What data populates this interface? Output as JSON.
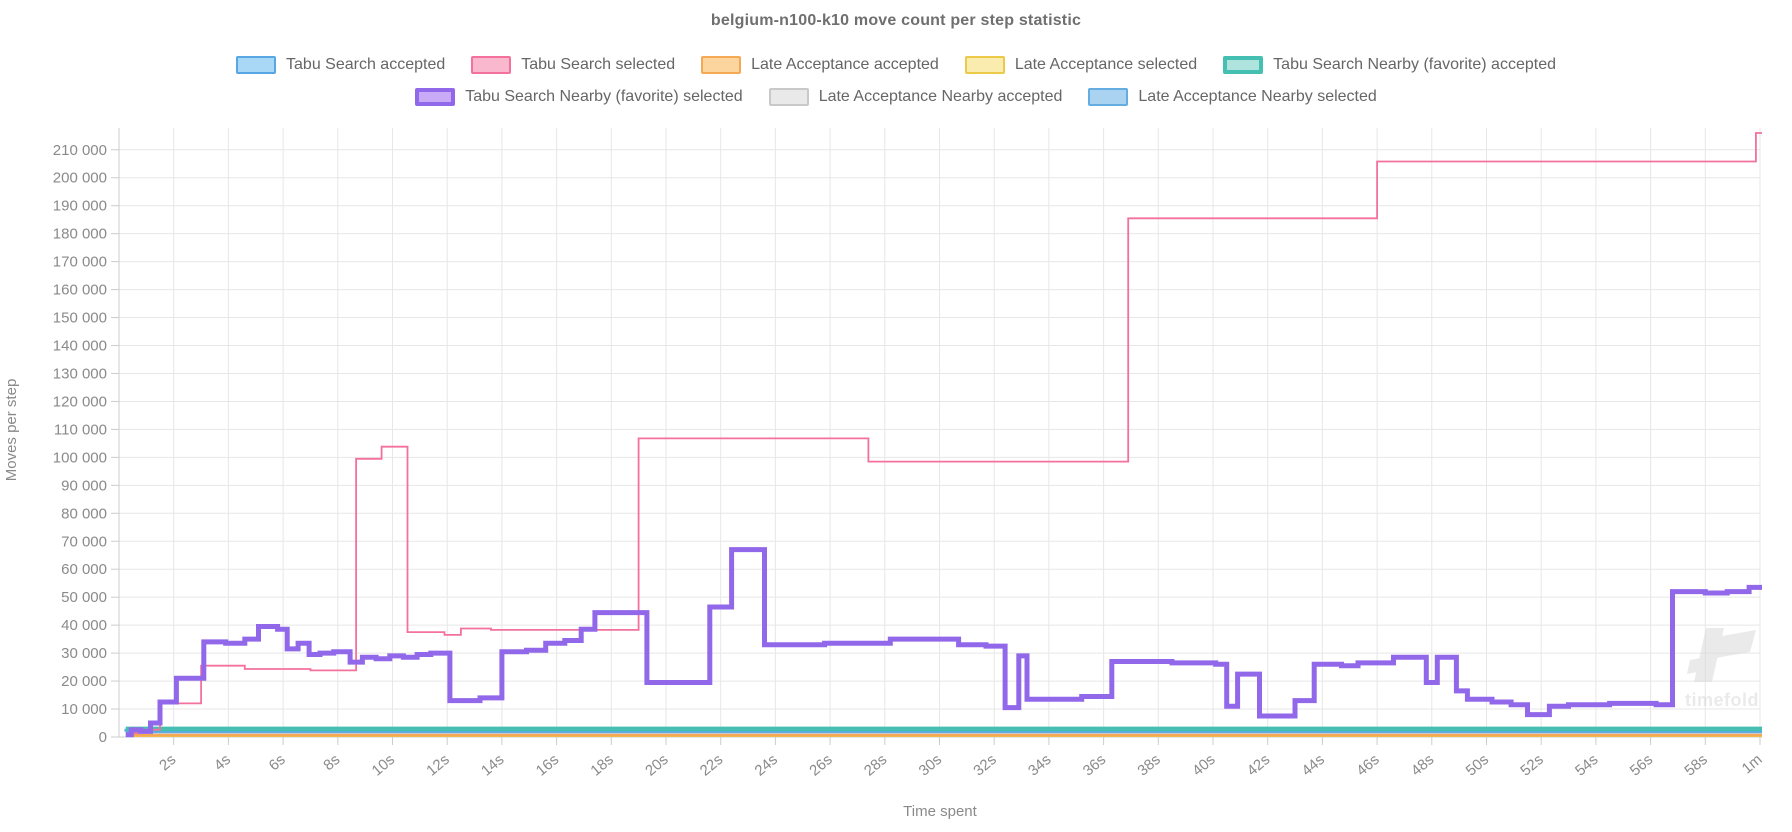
{
  "title": "belgium-n100-k10 move count per step statistic",
  "watermark": {
    "text": "timefold"
  },
  "legend": {
    "rows": [
      [
        {
          "label": "Tabu Search accepted",
          "fill": "#a9d7f6",
          "stroke": "#57a7e4",
          "thick": false
        },
        {
          "label": "Tabu Search selected",
          "fill": "#fab8ce",
          "stroke": "#f4719c",
          "thick": false
        },
        {
          "label": "Late Acceptance accepted",
          "fill": "#fbd49e",
          "stroke": "#f5a954",
          "thick": false
        },
        {
          "label": "Late Acceptance selected",
          "fill": "#faebae",
          "stroke": "#edc948",
          "thick": false
        },
        {
          "label": "Tabu Search Nearby (favorite) accepted",
          "fill": "#aee4dd",
          "stroke": "#45bfb1",
          "thick": true
        }
      ],
      [
        {
          "label": "Tabu Search Nearby (favorite) selected",
          "fill": "#c8aaf6",
          "stroke": "#9268ea",
          "thick": true
        },
        {
          "label": "Late Acceptance Nearby accepted",
          "fill": "#e9e9e9",
          "stroke": "#c9c9c9",
          "thick": false
        },
        {
          "label": "Late Acceptance Nearby selected",
          "fill": "#a9d3f0",
          "stroke": "#64ade0",
          "thick": false
        }
      ]
    ]
  },
  "chart_data": {
    "type": "line",
    "step": true,
    "title": "belgium-n100-k10 move count per step statistic",
    "xlabel": "Time spent",
    "ylabel": "Moves per step",
    "xlim": [
      0,
      60
    ],
    "ylim": [
      0,
      216000
    ],
    "t_end": 60.15,
    "grid": true,
    "legend_position": "top",
    "x_ticks": [
      {
        "v": 2,
        "label": "2s"
      },
      {
        "v": 4,
        "label": "4s"
      },
      {
        "v": 6,
        "label": "6s"
      },
      {
        "v": 8,
        "label": "8s"
      },
      {
        "v": 10,
        "label": "10s"
      },
      {
        "v": 12,
        "label": "12s"
      },
      {
        "v": 14,
        "label": "14s"
      },
      {
        "v": 16,
        "label": "16s"
      },
      {
        "v": 18,
        "label": "18s"
      },
      {
        "v": 20,
        "label": "20s"
      },
      {
        "v": 22,
        "label": "22s"
      },
      {
        "v": 24,
        "label": "24s"
      },
      {
        "v": 26,
        "label": "26s"
      },
      {
        "v": 28,
        "label": "28s"
      },
      {
        "v": 30,
        "label": "30s"
      },
      {
        "v": 32,
        "label": "32s"
      },
      {
        "v": 34,
        "label": "34s"
      },
      {
        "v": 36,
        "label": "36s"
      },
      {
        "v": 38,
        "label": "38s"
      },
      {
        "v": 40,
        "label": "40s"
      },
      {
        "v": 42,
        "label": "42s"
      },
      {
        "v": 44,
        "label": "44s"
      },
      {
        "v": 46,
        "label": "46s"
      },
      {
        "v": 48,
        "label": "48s"
      },
      {
        "v": 50,
        "label": "50s"
      },
      {
        "v": 52,
        "label": "52s"
      },
      {
        "v": 54,
        "label": "54s"
      },
      {
        "v": 56,
        "label": "56s"
      },
      {
        "v": 58,
        "label": "58s"
      },
      {
        "v": 60,
        "label": "1m"
      }
    ],
    "y_ticks": [
      {
        "v": 0,
        "label": "0"
      },
      {
        "v": 10000,
        "label": "10 000"
      },
      {
        "v": 20000,
        "label": "20 000"
      },
      {
        "v": 30000,
        "label": "30 000"
      },
      {
        "v": 40000,
        "label": "40 000"
      },
      {
        "v": 50000,
        "label": "50 000"
      },
      {
        "v": 60000,
        "label": "60 000"
      },
      {
        "v": 70000,
        "label": "70 000"
      },
      {
        "v": 80000,
        "label": "80 000"
      },
      {
        "v": 90000,
        "label": "90 000"
      },
      {
        "v": 100000,
        "label": "100 000"
      },
      {
        "v": 110000,
        "label": "110 000"
      },
      {
        "v": 120000,
        "label": "120 000"
      },
      {
        "v": 130000,
        "label": "130 000"
      },
      {
        "v": 140000,
        "label": "140 000"
      },
      {
        "v": 150000,
        "label": "150 000"
      },
      {
        "v": 160000,
        "label": "160 000"
      },
      {
        "v": 170000,
        "label": "170 000"
      },
      {
        "v": 180000,
        "label": "180 000"
      },
      {
        "v": 190000,
        "label": "190 000"
      },
      {
        "v": 200000,
        "label": "200 000"
      },
      {
        "v": 210000,
        "label": "210 000"
      }
    ],
    "series": [
      {
        "name": "Late Acceptance selected",
        "color": "#edc948",
        "width": 2.5,
        "points": [
          [
            0.25,
            430
          ]
        ]
      },
      {
        "name": "Late Acceptance accepted",
        "color": "#f5a954",
        "width": 2.5,
        "points": [
          [
            0.25,
            650
          ]
        ]
      },
      {
        "name": "Late Acceptance Nearby accepted",
        "color": "#c9c9c9",
        "width": 2.5,
        "points": [
          [
            0.25,
            1500
          ]
        ]
      },
      {
        "name": "Late Acceptance Nearby selected",
        "color": "#64ade0",
        "width": 3,
        "points": [
          [
            0.25,
            1950
          ]
        ]
      },
      {
        "name": "Tabu Search accepted",
        "color": "#57a7e4",
        "width": 3,
        "points": [
          [
            0.2,
            2400
          ]
        ]
      },
      {
        "name": "Tabu Search Nearby (favorite) accepted",
        "color": "#45bfb1",
        "width": 4.5,
        "points": [
          [
            0.25,
            2900
          ]
        ]
      },
      {
        "name": "Tabu Search selected",
        "color": "#f4719c",
        "width": 1.8,
        "points": [
          [
            0.25,
            1300
          ],
          [
            0.7,
            2600
          ],
          [
            1.5,
            12000
          ],
          [
            3.0,
            25500
          ],
          [
            4.6,
            24300
          ],
          [
            7.0,
            23800
          ],
          [
            8.67,
            99500
          ],
          [
            9.6,
            103800
          ],
          [
            10.55,
            37500
          ],
          [
            11.9,
            36500
          ],
          [
            12.5,
            38800
          ],
          [
            13.6,
            38300
          ],
          [
            19.0,
            106800
          ],
          [
            27.4,
            98500
          ],
          [
            36.9,
            185500
          ],
          [
            46.0,
            205800
          ],
          [
            59.85,
            216000
          ]
        ]
      },
      {
        "name": "Tabu Search Nearby (favorite) selected",
        "color": "#9268ea",
        "width": 5,
        "points": [
          [
            0.25,
            800
          ],
          [
            0.45,
            2600
          ],
          [
            0.8,
            2000
          ],
          [
            1.15,
            5000
          ],
          [
            1.5,
            12500
          ],
          [
            2.1,
            21000
          ],
          [
            3.1,
            34000
          ],
          [
            3.9,
            33500
          ],
          [
            4.6,
            35000
          ],
          [
            5.1,
            39500
          ],
          [
            5.8,
            38500
          ],
          [
            6.15,
            31500
          ],
          [
            6.55,
            33500
          ],
          [
            6.95,
            29500
          ],
          [
            7.35,
            30000
          ],
          [
            7.85,
            30500
          ],
          [
            8.45,
            26800
          ],
          [
            8.9,
            28500
          ],
          [
            9.4,
            28000
          ],
          [
            9.9,
            29000
          ],
          [
            10.4,
            28500
          ],
          [
            10.9,
            29500
          ],
          [
            11.4,
            30000
          ],
          [
            12.1,
            13000
          ],
          [
            13.2,
            14000
          ],
          [
            14.0,
            30500
          ],
          [
            14.9,
            31000
          ],
          [
            15.6,
            33500
          ],
          [
            16.3,
            34500
          ],
          [
            16.9,
            38500
          ],
          [
            17.4,
            44500
          ],
          [
            19.3,
            19500
          ],
          [
            21.6,
            46500
          ],
          [
            22.4,
            67000
          ],
          [
            23.6,
            33000
          ],
          [
            25.8,
            33500
          ],
          [
            28.2,
            35000
          ],
          [
            30.7,
            33000
          ],
          [
            31.7,
            32500
          ],
          [
            32.4,
            10500
          ],
          [
            32.9,
            29000
          ],
          [
            33.2,
            13500
          ],
          [
            35.2,
            14500
          ],
          [
            36.3,
            27000
          ],
          [
            38.5,
            26500
          ],
          [
            40.1,
            26000
          ],
          [
            40.5,
            11000
          ],
          [
            40.9,
            22500
          ],
          [
            41.7,
            7500
          ],
          [
            43.0,
            13000
          ],
          [
            43.7,
            26000
          ],
          [
            44.7,
            25500
          ],
          [
            45.3,
            26500
          ],
          [
            46.6,
            28500
          ],
          [
            47.8,
            19500
          ],
          [
            48.2,
            28500
          ],
          [
            48.9,
            16500
          ],
          [
            49.3,
            13500
          ],
          [
            50.2,
            12500
          ],
          [
            50.9,
            11500
          ],
          [
            51.5,
            8000
          ],
          [
            52.3,
            11000
          ],
          [
            53.0,
            11500
          ],
          [
            54.5,
            12000
          ],
          [
            56.2,
            11500
          ],
          [
            56.8,
            52000
          ],
          [
            58.0,
            51500
          ],
          [
            58.8,
            52000
          ],
          [
            59.6,
            53500
          ]
        ]
      }
    ]
  }
}
